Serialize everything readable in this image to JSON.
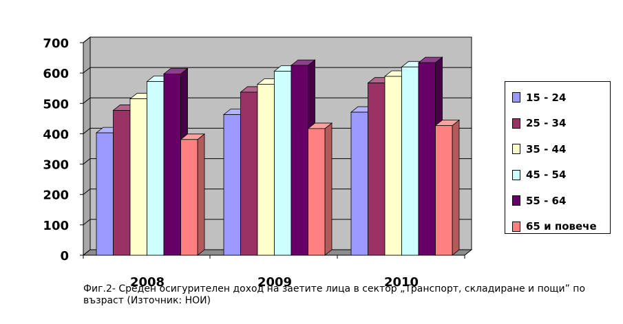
{
  "chart_data": {
    "type": "bar",
    "categories": [
      "2008",
      "2009",
      "2010"
    ],
    "series": [
      {
        "name": "15 - 24",
        "color": "#9999ff",
        "values": [
          403,
          463,
          471
        ]
      },
      {
        "name": "25 - 34",
        "color": "#993366",
        "values": [
          477,
          537,
          567
        ]
      },
      {
        "name": "35 - 44",
        "color": "#ffffcc",
        "values": [
          515,
          563,
          589
        ]
      },
      {
        "name": "45 - 54",
        "color": "#ccffff",
        "values": [
          572,
          606,
          620
        ]
      },
      {
        "name": "55 - 64",
        "color": "#660066",
        "values": [
          597,
          625,
          634
        ]
      },
      {
        "name": "65 и повече",
        "color": "#ff8080",
        "values": [
          381,
          417,
          427
        ]
      }
    ],
    "ylim": [
      0,
      700
    ],
    "yticks": [
      0,
      100,
      200,
      300,
      400,
      500,
      600,
      700
    ],
    "ytick_labels": [
      "0",
      "100",
      "200",
      "300",
      "400",
      "500",
      "600",
      "700"
    ],
    "grid": true,
    "style": "3d-clustered-column",
    "plot_background": "#c0c0c0",
    "legend_position": "right"
  },
  "caption": "Фиг.2- Среден осигурителен доход на заетите лица в сектор „Транспорт, складиране и пощи” по възраст (Източник: НОИ)"
}
